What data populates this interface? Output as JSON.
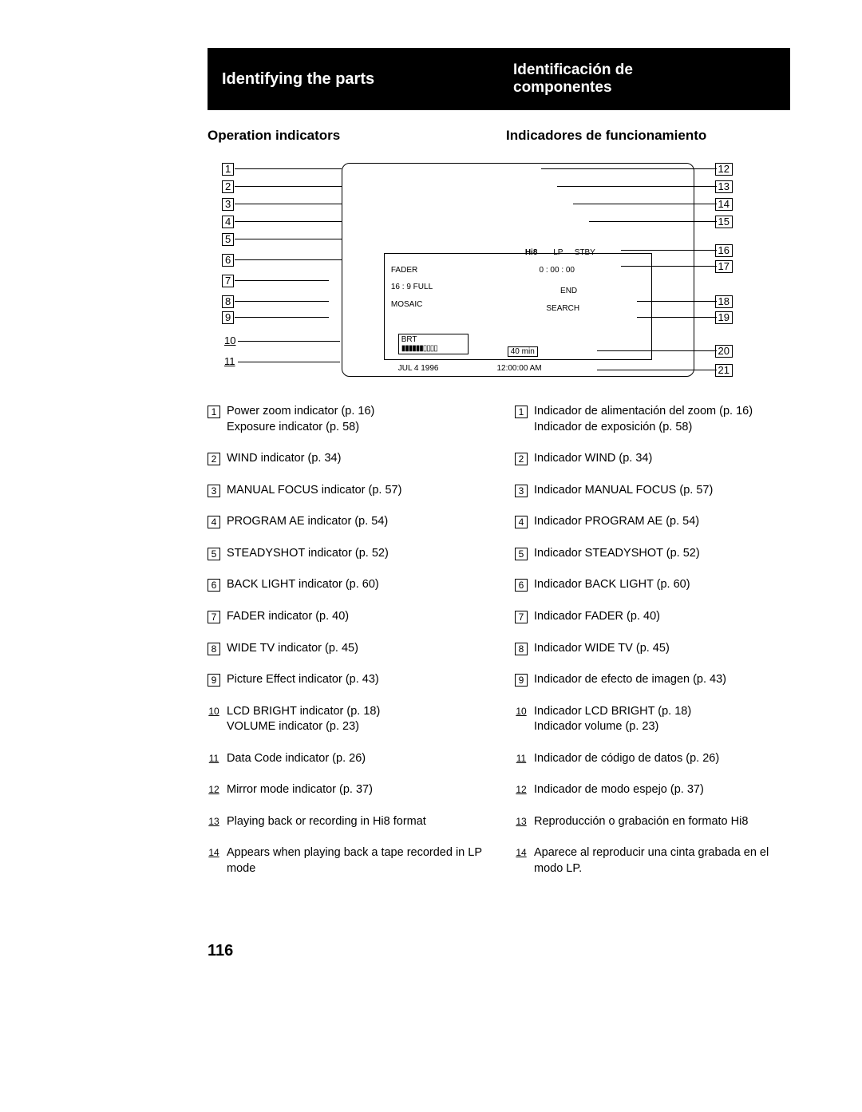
{
  "header": {
    "left": "Identifying the parts",
    "right_line1": "Identificación de",
    "right_line2": "componentes"
  },
  "subhead": {
    "left": "Operation indicators",
    "right": "Indicadores de funcionamiento"
  },
  "diagram": {
    "lcd_labels": {
      "fader": "FADER",
      "wide": "16 : 9 FULL",
      "mosaic": "MOSAIC",
      "brt": "BRT",
      "date": "JUL 4 1996",
      "hi8": "Hi8",
      "lp": "LP",
      "stby": "STBY",
      "counter": "0 : 00 : 00",
      "end": "END",
      "search": "SEARCH",
      "remain": "40 min",
      "time": "12:00:00 AM"
    },
    "left_nums": [
      "1",
      "2",
      "3",
      "4",
      "5",
      "6",
      "7",
      "8",
      "9",
      "10",
      "11"
    ],
    "right_nums": [
      "12",
      "13",
      "14",
      "15",
      "16",
      "17",
      "18",
      "19",
      "20",
      "21"
    ]
  },
  "english": [
    {
      "n": "1",
      "t": "Power zoom indicator (p. 16)\nExposure indicator (p. 58)"
    },
    {
      "n": "2",
      "t": "WIND indicator (p. 34)"
    },
    {
      "n": "3",
      "t": "MANUAL FOCUS indicator (p. 57)"
    },
    {
      "n": "4",
      "t": "PROGRAM AE indicator (p. 54)"
    },
    {
      "n": "5",
      "t": "STEADYSHOT indicator (p. 52)"
    },
    {
      "n": "6",
      "t": "BACK LIGHT indicator (p. 60)"
    },
    {
      "n": "7",
      "t": "FADER indicator (p. 40)"
    },
    {
      "n": "8",
      "t": "WIDE TV indicator (p. 45)"
    },
    {
      "n": "9",
      "t": "Picture Effect indicator (p. 43)"
    },
    {
      "n": "10",
      "t": "LCD BRIGHT indicator (p. 18)\nVOLUME indicator (p. 23)"
    },
    {
      "n": "11",
      "t": "Data Code indicator (p. 26)"
    },
    {
      "n": "12",
      "t": "Mirror mode indicator (p. 37)"
    },
    {
      "n": "13",
      "t": "Playing back or recording in Hi8 format"
    },
    {
      "n": "14",
      "t": "Appears when playing back a tape recorded in LP mode"
    }
  ],
  "spanish": [
    {
      "n": "1",
      "t": "Indicador de alimentación del zoom (p. 16)\nIndicador de exposición (p. 58)"
    },
    {
      "n": "2",
      "t": "Indicador WIND (p. 34)"
    },
    {
      "n": "3",
      "t": "Indicador MANUAL FOCUS (p. 57)"
    },
    {
      "n": "4",
      "t": "Indicador PROGRAM AE (p. 54)"
    },
    {
      "n": "5",
      "t": "Indicador STEADYSHOT (p. 52)"
    },
    {
      "n": "6",
      "t": "Indicador BACK LIGHT (p. 60)"
    },
    {
      "n": "7",
      "t": "Indicador FADER (p. 40)"
    },
    {
      "n": "8",
      "t": "Indicador WIDE TV (p. 45)"
    },
    {
      "n": "9",
      "t": "Indicador de efecto de imagen (p. 43)"
    },
    {
      "n": "10",
      "t": "Indicador LCD BRIGHT (p. 18)\nIndicador volume (p. 23)"
    },
    {
      "n": "11",
      "t": "Indicador de código de datos (p. 26)"
    },
    {
      "n": "12",
      "t": "Indicador de modo espejo (p. 37)"
    },
    {
      "n": "13",
      "t": "Reproducción o grabación en formato Hi8"
    },
    {
      "n": "14",
      "t": "Aparece al reproducir una cinta grabada en el modo LP."
    }
  ],
  "page_number": "116"
}
